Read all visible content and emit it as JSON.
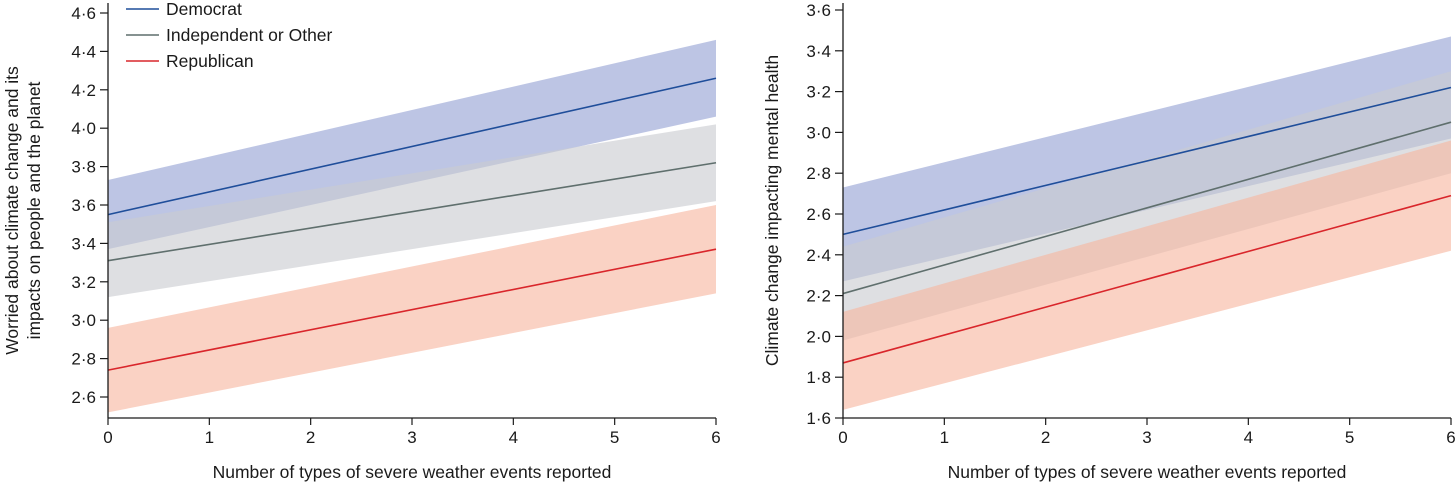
{
  "legend": {
    "items": [
      {
        "label": "Democrat",
        "color": "#1f4e9a"
      },
      {
        "label": "Independent or Other",
        "color": "#5f6f6d"
      },
      {
        "label": "Republican",
        "color": "#d9262b"
      }
    ]
  },
  "colors": {
    "democrat_line": "#1f4e9a",
    "democrat_band": "#aab5dd",
    "independent_line": "#5f6f6d",
    "independent_band": "#c9ccd1",
    "republican_line": "#d9262b",
    "republican_band": "#f7b69f",
    "axis": "#1a1a1a"
  },
  "chart_data": [
    {
      "type": "line",
      "title": "",
      "xlabel": "Number of types of severe weather events reported",
      "ylabel_lines": [
        "Worried about climate change and its",
        "impacts on people and the planet"
      ],
      "xlim": [
        0,
        6
      ],
      "ylim": [
        2.5,
        4.6
      ],
      "x_ticks": [
        0,
        1,
        2,
        3,
        4,
        5,
        6
      ],
      "x_tick_labels": [
        "0",
        "1",
        "2",
        "3",
        "4",
        "5",
        "6"
      ],
      "y_ticks": [
        2.6,
        2.8,
        3.0,
        3.2,
        3.4,
        3.6,
        3.8,
        4.0,
        4.2,
        4.4,
        4.6
      ],
      "y_tick_labels": [
        "2·6",
        "2·8",
        "3·0",
        "3·2",
        "3·4",
        "3·6",
        "3·8",
        "4·0",
        "4·2",
        "4·4",
        "4·6"
      ],
      "grid": false,
      "legend_position": "top-left",
      "series": [
        {
          "name": "Democrat",
          "x": [
            0,
            6
          ],
          "y": [
            3.55,
            4.26
          ],
          "lower": [
            3.37,
            4.06
          ],
          "upper": [
            3.73,
            4.46
          ]
        },
        {
          "name": "Independent or Other",
          "x": [
            0,
            6
          ],
          "y": [
            3.31,
            3.82
          ],
          "lower": [
            3.12,
            3.62
          ],
          "upper": [
            3.51,
            4.02
          ]
        },
        {
          "name": "Republican",
          "x": [
            0,
            6
          ],
          "y": [
            2.74,
            3.37
          ],
          "lower": [
            2.52,
            3.14
          ],
          "upper": [
            2.96,
            3.6
          ]
        }
      ]
    },
    {
      "type": "line",
      "title": "",
      "xlabel": "Number of types of severe weather events reported",
      "ylabel_lines": [
        "Climate change impacting mental health"
      ],
      "xlim": [
        0,
        6
      ],
      "ylim": [
        1.6,
        3.6
      ],
      "x_ticks": [
        0,
        1,
        2,
        3,
        4,
        5,
        6
      ],
      "x_tick_labels": [
        "0",
        "1",
        "2",
        "3",
        "4",
        "5",
        "6"
      ],
      "y_ticks": [
        1.6,
        1.8,
        2.0,
        2.2,
        2.4,
        2.6,
        2.8,
        3.0,
        3.2,
        3.4,
        3.6
      ],
      "y_tick_labels": [
        "1·6",
        "1·8",
        "2·0",
        "2·2",
        "2·4",
        "2·6",
        "2·8",
        "3·0",
        "3·2",
        "3·4",
        "3·6"
      ],
      "grid": false,
      "series": [
        {
          "name": "Democrat",
          "x": [
            0,
            6
          ],
          "y": [
            2.5,
            3.22
          ],
          "lower": [
            2.27,
            2.97
          ],
          "upper": [
            2.73,
            3.47
          ]
        },
        {
          "name": "Independent or Other",
          "x": [
            0,
            6
          ],
          "y": [
            2.21,
            3.05
          ],
          "lower": [
            1.98,
            2.8
          ],
          "upper": [
            2.44,
            3.3
          ]
        },
        {
          "name": "Republican",
          "x": [
            0,
            6
          ],
          "y": [
            1.87,
            2.69
          ],
          "lower": [
            1.64,
            2.42
          ],
          "upper": [
            2.12,
            2.96
          ]
        }
      ]
    }
  ]
}
